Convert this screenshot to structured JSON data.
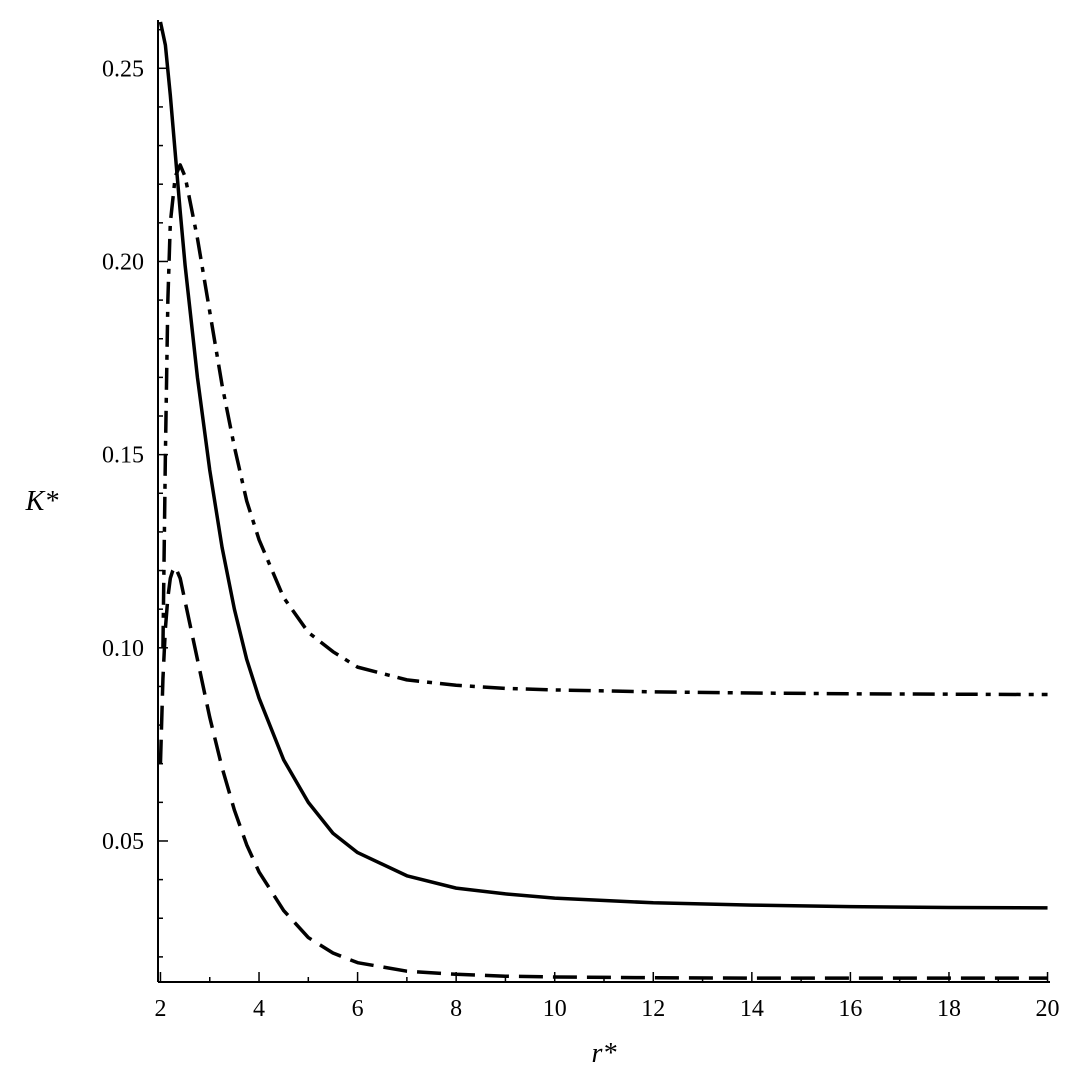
{
  "chart_data": {
    "type": "line",
    "title": "",
    "xlabel": "r*",
    "ylabel": "K*",
    "xlim": [
      1.95,
      20.05
    ],
    "ylim": [
      0.0135,
      0.2625
    ],
    "x_ticks": [
      2,
      4,
      6,
      8,
      10,
      12,
      14,
      16,
      18,
      20
    ],
    "x_tick_labels": [
      "2",
      "4",
      "6",
      "8",
      "10",
      "12",
      "14",
      "16",
      "18",
      "20"
    ],
    "y_ticks": [
      0.05,
      0.1,
      0.15,
      0.2,
      0.25
    ],
    "y_tick_labels": [
      "0.05",
      "0.10",
      "0.15",
      "0.20",
      "0.25"
    ],
    "grid": false,
    "legend": "none",
    "series": [
      {
        "style": "solid",
        "x": [
          2.0,
          2.1,
          2.2,
          2.3,
          2.4,
          2.5,
          2.75,
          3.0,
          3.25,
          3.5,
          3.75,
          4.0,
          4.5,
          5.0,
          5.5,
          6.0,
          7.0,
          8.0,
          9.0,
          10.0,
          12.0,
          14.0,
          16.0,
          18.0,
          20.0
        ],
        "y": [
          0.262,
          0.256,
          0.243,
          0.228,
          0.213,
          0.199,
          0.17,
          0.146,
          0.126,
          0.11,
          0.097,
          0.087,
          0.071,
          0.06,
          0.052,
          0.047,
          0.041,
          0.0378,
          0.0363,
          0.0352,
          0.034,
          0.0334,
          0.033,
          0.0328,
          0.0327
        ]
      },
      {
        "style": "dashdot",
        "x": [
          2.05,
          2.1,
          2.15,
          2.2,
          2.3,
          2.4,
          2.5,
          2.75,
          3.0,
          3.25,
          3.5,
          3.75,
          4.0,
          4.5,
          5.0,
          5.5,
          6.0,
          7.0,
          8.0,
          9.0,
          10.0,
          12.0,
          14.0,
          16.0,
          18.0,
          20.0
        ],
        "y": [
          0.1,
          0.15,
          0.19,
          0.21,
          0.222,
          0.225,
          0.222,
          0.206,
          0.187,
          0.168,
          0.152,
          0.138,
          0.128,
          0.113,
          0.104,
          0.099,
          0.095,
          0.0917,
          0.0903,
          0.0895,
          0.0891,
          0.0886,
          0.0883,
          0.0881,
          0.088,
          0.0879
        ]
      },
      {
        "style": "dashed",
        "x": [
          2.0,
          2.05,
          2.1,
          2.15,
          2.2,
          2.25,
          2.3,
          2.4,
          2.5,
          2.75,
          3.0,
          3.25,
          3.5,
          3.75,
          4.0,
          4.5,
          5.0,
          5.5,
          6.0,
          7.0,
          8.0,
          9.0,
          10.0,
          12.0,
          14.0,
          16.0,
          18.0,
          20.0
        ],
        "y": [
          0.07,
          0.092,
          0.105,
          0.113,
          0.118,
          0.12,
          0.121,
          0.118,
          0.112,
          0.097,
          0.082,
          0.069,
          0.058,
          0.049,
          0.042,
          0.032,
          0.025,
          0.021,
          0.0185,
          0.0163,
          0.0155,
          0.015,
          0.0148,
          0.0146,
          0.0145,
          0.0145,
          0.0145,
          0.0145
        ]
      }
    ]
  }
}
